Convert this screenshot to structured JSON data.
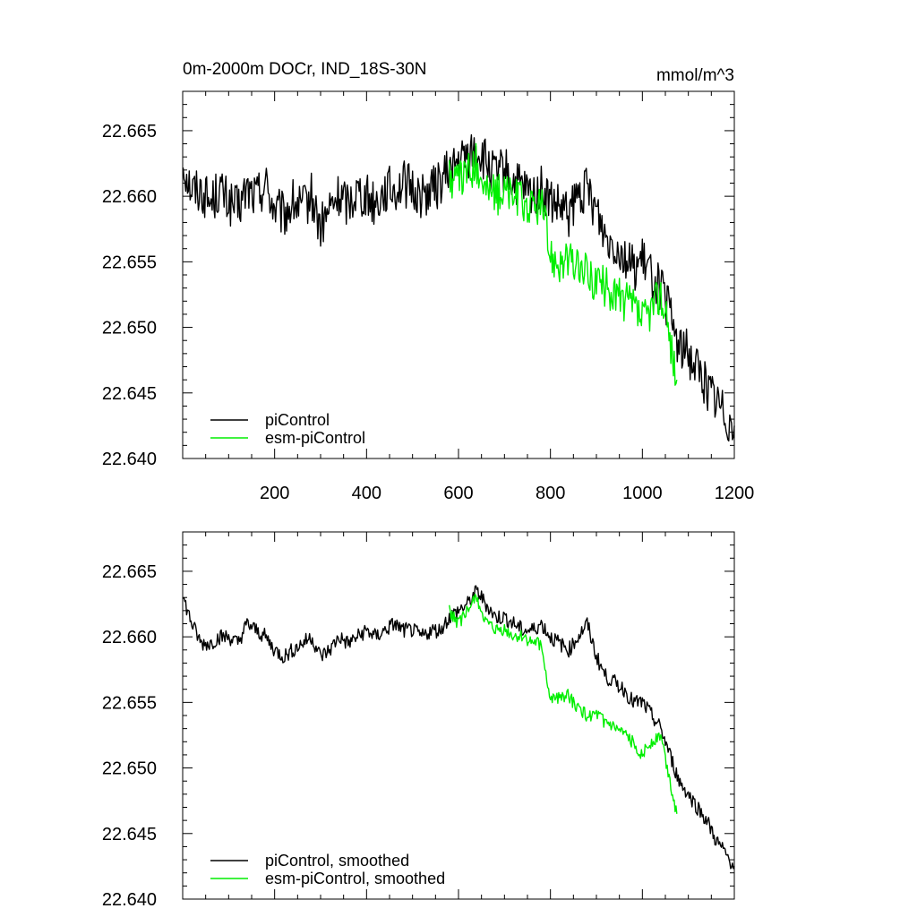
{
  "title_left": "0m-2000m DOCr, IND_18S-30N",
  "units": "mmol/m^3",
  "colors": {
    "pi": "#000000",
    "esm": "#00ee00",
    "axis": "#000000"
  },
  "chart_data": [
    {
      "type": "line",
      "id": "raw",
      "xlim": [
        0,
        1200
      ],
      "ylim": [
        22.64,
        22.668
      ],
      "x_ticks": [
        200,
        400,
        600,
        800,
        1000,
        1200
      ],
      "x_tick_labels": [
        "200",
        "400",
        "600",
        "800",
        "1000",
        "1200"
      ],
      "y_ticks": [
        22.64,
        22.645,
        22.65,
        22.655,
        22.66,
        22.665
      ],
      "y_tick_labels": [
        "22.640",
        "22.645",
        "22.650",
        "22.655",
        "22.660",
        "22.665"
      ],
      "legend": [
        "piControl",
        "esm-piControl"
      ],
      "series": [
        {
          "name": "piControl",
          "key": "pi",
          "x": [
            1,
            20,
            40,
            60,
            80,
            100,
            120,
            140,
            160,
            180,
            200,
            220,
            240,
            260,
            280,
            300,
            320,
            340,
            360,
            380,
            400,
            420,
            440,
            460,
            480,
            500,
            520,
            540,
            560,
            580,
            600,
            620,
            640,
            660,
            680,
            700,
            720,
            740,
            760,
            780,
            800,
            820,
            840,
            860,
            880,
            900,
            920,
            940,
            960,
            980,
            1000,
            1020,
            1040,
            1060,
            1080,
            1100,
            1120,
            1140,
            1160,
            1180,
            1200
          ],
          "values": [
            22.6625,
            22.6605,
            22.6605,
            22.6595,
            22.6605,
            22.6595,
            22.659,
            22.6605,
            22.66,
            22.661,
            22.659,
            22.6585,
            22.6595,
            22.659,
            22.66,
            22.6575,
            22.659,
            22.66,
            22.6595,
            22.6605,
            22.66,
            22.6595,
            22.6605,
            22.6605,
            22.661,
            22.6605,
            22.66,
            22.6605,
            22.661,
            22.662,
            22.6625,
            22.663,
            22.6635,
            22.6625,
            22.6615,
            22.662,
            22.661,
            22.6605,
            22.66,
            22.6605,
            22.6595,
            22.659,
            22.6585,
            22.66,
            22.6605,
            22.659,
            22.657,
            22.6565,
            22.6555,
            22.6545,
            22.655,
            22.654,
            22.653,
            22.651,
            22.6485,
            22.648,
            22.647,
            22.6455,
            22.6445,
            22.6435,
            22.6425
          ],
          "noise": 0.0018
        },
        {
          "name": "esm-piControl",
          "key": "esm",
          "x": [
            580,
            600,
            620,
            640,
            660,
            680,
            700,
            720,
            740,
            760,
            780,
            800,
            820,
            840,
            860,
            880,
            900,
            920,
            940,
            960,
            980,
            1000,
            1020,
            1040,
            1060,
            1075
          ],
          "values": [
            22.6615,
            22.661,
            22.662,
            22.6625,
            22.6605,
            22.66,
            22.6605,
            22.66,
            22.6595,
            22.659,
            22.6595,
            22.6555,
            22.655,
            22.655,
            22.6545,
            22.654,
            22.6535,
            22.653,
            22.6525,
            22.652,
            22.6515,
            22.6505,
            22.6515,
            22.6525,
            22.649,
            22.646
          ],
          "noise": 0.0016
        }
      ]
    },
    {
      "type": "line",
      "id": "smoothed",
      "xlim": [
        0,
        1200
      ],
      "ylim": [
        22.64,
        22.668
      ],
      "x_ticks": [
        200,
        400,
        600,
        800,
        1000,
        1200
      ],
      "x_tick_labels": [],
      "y_ticks": [
        22.64,
        22.645,
        22.65,
        22.655,
        22.66,
        22.665
      ],
      "y_tick_labels": [
        "22.640",
        "22.645",
        "22.650",
        "22.655",
        "22.660",
        "22.665"
      ],
      "legend": [
        "piControl, smoothed",
        "esm-piControl, smoothed"
      ],
      "series": [
        {
          "name": "piControl, smoothed",
          "key": "pi",
          "x": [
            1,
            20,
            40,
            60,
            80,
            100,
            120,
            140,
            160,
            180,
            200,
            220,
            240,
            260,
            280,
            300,
            320,
            340,
            360,
            380,
            400,
            420,
            440,
            460,
            480,
            500,
            520,
            540,
            560,
            580,
            600,
            620,
            640,
            660,
            680,
            700,
            720,
            740,
            760,
            780,
            800,
            820,
            840,
            860,
            880,
            900,
            920,
            940,
            960,
            980,
            1000,
            1020,
            1040,
            1060,
            1080,
            1100,
            1120,
            1140,
            1160,
            1180,
            1200
          ],
          "values": [
            22.663,
            22.661,
            22.6595,
            22.6595,
            22.66,
            22.66,
            22.6595,
            22.661,
            22.6605,
            22.66,
            22.659,
            22.6585,
            22.659,
            22.6595,
            22.66,
            22.6585,
            22.659,
            22.66,
            22.6595,
            22.66,
            22.6605,
            22.66,
            22.6605,
            22.661,
            22.6605,
            22.6605,
            22.66,
            22.6605,
            22.6605,
            22.6615,
            22.662,
            22.6625,
            22.6635,
            22.6625,
            22.6615,
            22.6615,
            22.661,
            22.6605,
            22.6605,
            22.661,
            22.66,
            22.6595,
            22.659,
            22.66,
            22.661,
            22.6585,
            22.657,
            22.6565,
            22.656,
            22.655,
            22.655,
            22.654,
            22.653,
            22.651,
            22.649,
            22.648,
            22.647,
            22.646,
            22.6445,
            22.6435,
            22.6425
          ],
          "noise": 0.0006
        },
        {
          "name": "esm-piControl, smoothed",
          "key": "esm",
          "x": [
            580,
            600,
            620,
            640,
            660,
            680,
            700,
            720,
            740,
            760,
            780,
            800,
            820,
            840,
            860,
            880,
            900,
            920,
            940,
            960,
            980,
            1000,
            1020,
            1040,
            1060,
            1075
          ],
          "values": [
            22.662,
            22.661,
            22.662,
            22.663,
            22.661,
            22.6605,
            22.6605,
            22.66,
            22.66,
            22.6595,
            22.6595,
            22.655,
            22.6555,
            22.6555,
            22.6545,
            22.654,
            22.654,
            22.6535,
            22.653,
            22.6525,
            22.652,
            22.651,
            22.652,
            22.6525,
            22.649,
            22.6465
          ],
          "noise": 0.0005
        }
      ]
    }
  ]
}
